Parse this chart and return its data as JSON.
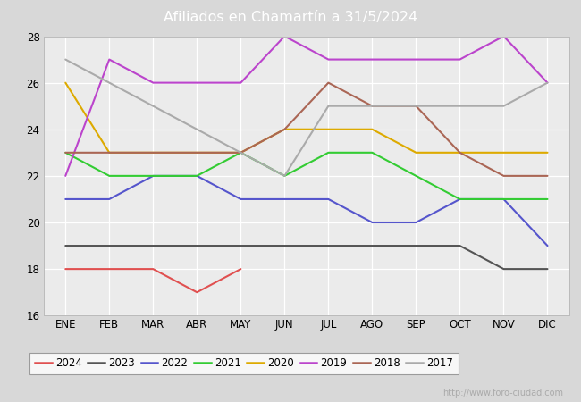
{
  "title": "Afiliados en Chamartín a 31/5/2024",
  "ylim": [
    16,
    28
  ],
  "yticks": [
    16,
    18,
    20,
    22,
    24,
    26,
    28
  ],
  "months": [
    "ENE",
    "FEB",
    "MAR",
    "ABR",
    "MAY",
    "JUN",
    "JUL",
    "AGO",
    "SEP",
    "OCT",
    "NOV",
    "DIC"
  ],
  "series": [
    {
      "year": "2024",
      "color": "#e05050",
      "data": [
        18,
        18,
        18,
        17,
        18,
        null,
        null,
        null,
        null,
        null,
        null,
        null
      ]
    },
    {
      "year": "2023",
      "color": "#555555",
      "data": [
        19,
        19,
        19,
        19,
        19,
        19,
        19,
        19,
        19,
        19,
        18,
        18
      ]
    },
    {
      "year": "2022",
      "color": "#5555cc",
      "data": [
        21,
        21,
        22,
        22,
        21,
        21,
        21,
        20,
        20,
        21,
        21,
        19
      ]
    },
    {
      "year": "2021",
      "color": "#33cc33",
      "data": [
        23,
        22,
        22,
        22,
        23,
        22,
        23,
        23,
        22,
        21,
        21,
        21
      ]
    },
    {
      "year": "2020",
      "color": "#ddaa00",
      "data": [
        26,
        23,
        23,
        23,
        23,
        24,
        24,
        24,
        23,
        23,
        23,
        23
      ]
    },
    {
      "year": "2019",
      "color": "#bb44cc",
      "data": [
        22,
        27,
        26,
        26,
        26,
        28,
        27,
        27,
        27,
        27,
        28,
        26
      ]
    },
    {
      "year": "2018",
      "color": "#aa6655",
      "data": [
        23,
        23,
        23,
        23,
        23,
        24,
        26,
        25,
        25,
        23,
        22,
        22
      ]
    },
    {
      "year": "2017",
      "color": "#aaaaaa",
      "data": [
        27,
        26,
        25,
        24,
        23,
        22,
        25,
        25,
        25,
        25,
        25,
        26
      ]
    }
  ],
  "header_color": "#4f86c6",
  "title_text_color": "#ffffff",
  "bg_color": "#d8d8d8",
  "plot_bg": "#ebebeb",
  "grid_color": "#ffffff",
  "watermark": "http://www.foro-ciudad.com",
  "watermark_color": "#aaaaaa"
}
